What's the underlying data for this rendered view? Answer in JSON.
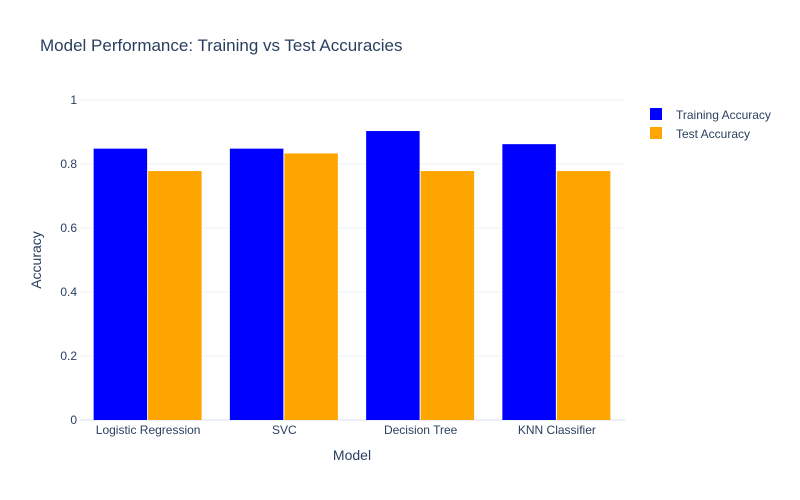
{
  "chart_data": {
    "type": "bar",
    "title": "Model Performance: Training vs Test Accuracies",
    "xlabel": "Model",
    "ylabel": "Accuracy",
    "categories": [
      "Logistic Regression",
      "SVC",
      "Decision Tree",
      "KNN Classifier"
    ],
    "series": [
      {
        "name": "Training Accuracy",
        "color": "#0000ff",
        "values": [
          0.848,
          0.848,
          0.903,
          0.862
        ]
      },
      {
        "name": "Test Accuracy",
        "color": "#ffa500",
        "values": [
          0.778,
          0.833,
          0.778,
          0.778
        ]
      }
    ],
    "ylim": [
      0,
      1
    ],
    "yticks": [
      0,
      0.2,
      0.4,
      0.6,
      0.8,
      1
    ],
    "ytick_labels": [
      "0",
      "0.2",
      "0.4",
      "0.6",
      "0.8",
      "1"
    ],
    "grid": true,
    "legend_position": "top-right"
  }
}
